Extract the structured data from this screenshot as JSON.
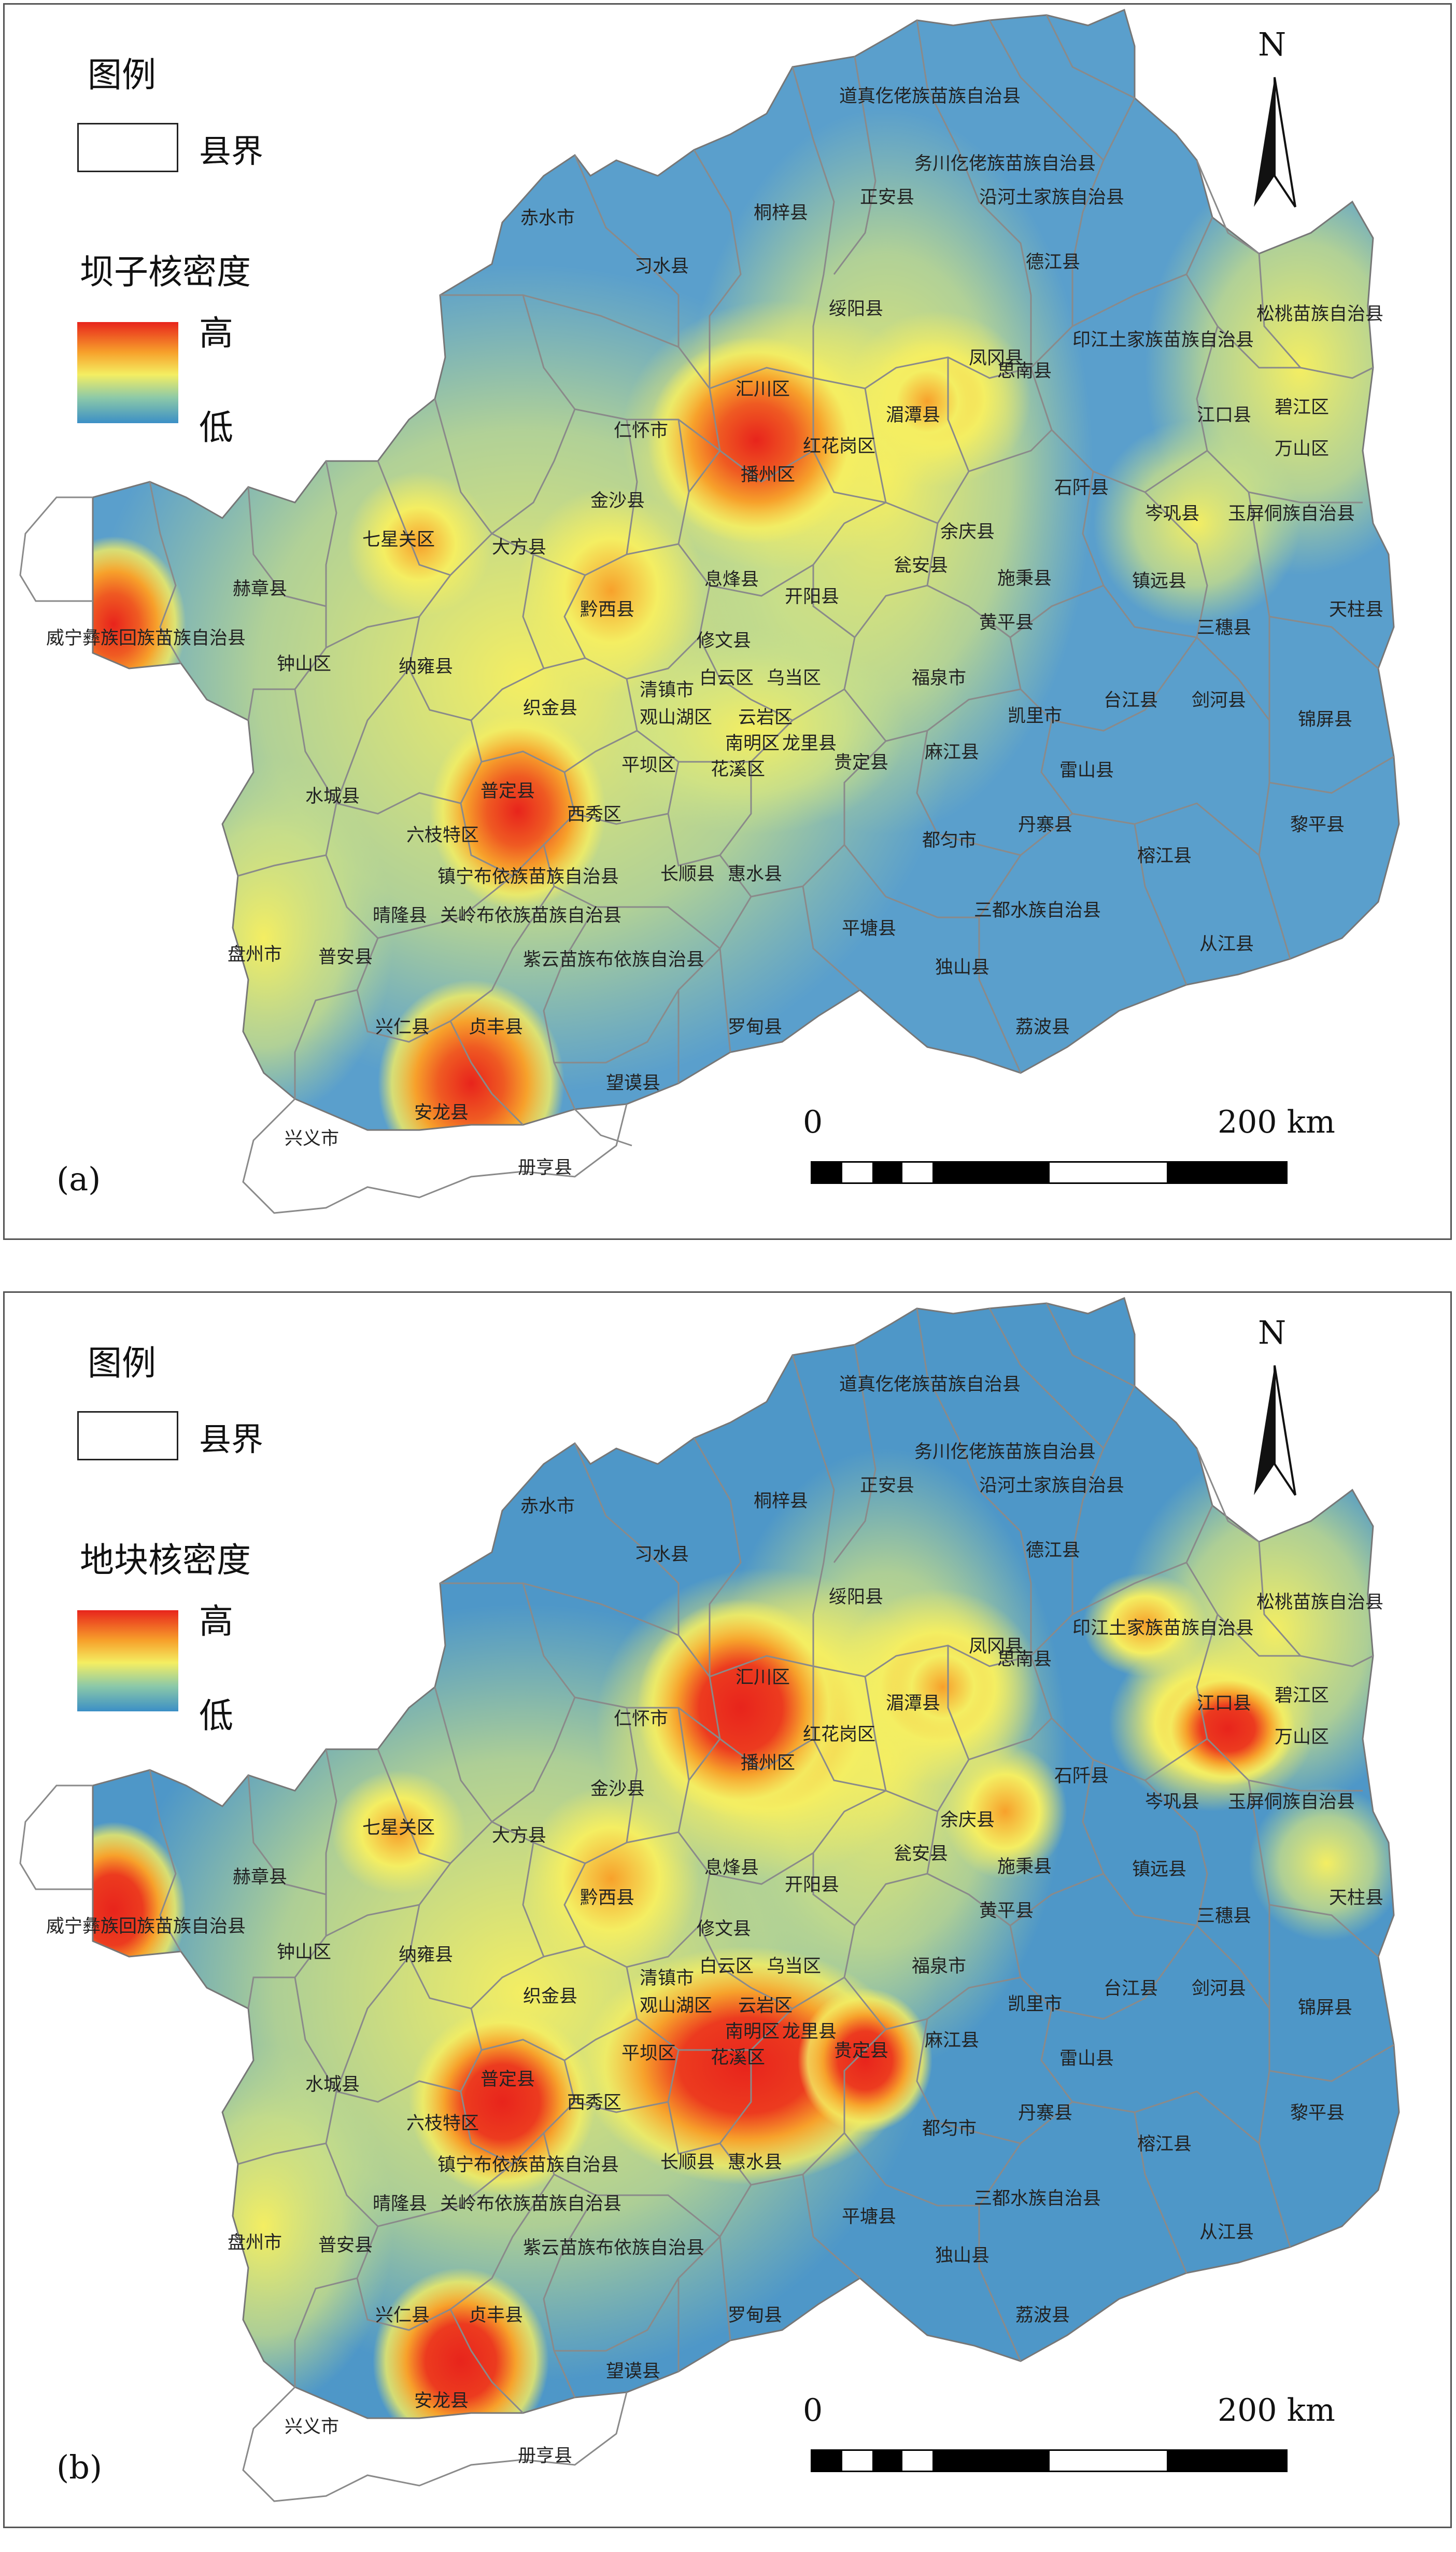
{
  "panels": [
    {
      "id": "a",
      "label": "(a)",
      "legend_title": "图例",
      "county_label": "县界",
      "density_title": "坝子核密度",
      "high_label": "高",
      "low_label": "低",
      "north_label": "N",
      "scale_zero": "0",
      "scale_max": "200 km"
    },
    {
      "id": "b",
      "label": "(b)",
      "legend_title": "图例",
      "county_label": "县界",
      "density_title": "地块核密度",
      "high_label": "高",
      "low_label": "低",
      "north_label": "N",
      "scale_zero": "0",
      "scale_max": "200 km"
    }
  ],
  "colors": {
    "high": "#e8241c",
    "mid_high": "#f7a12b",
    "mid": "#f4ee62",
    "mid_low": "#8cc9a8",
    "low": "#3b8fc6",
    "border": "#8a8a8a"
  },
  "place_names": [
    "道真仡佬族苗族自治县",
    "务川仡佬族苗族自治县",
    "沿河土家族自治县",
    "正安县",
    "桐梓县",
    "赤水市",
    "习水县",
    "德江县",
    "绥阳县",
    "印江土家族苗族自治县",
    "松桃苗族自治县",
    "思南县",
    "凤冈县",
    "汇川区",
    "湄潭县",
    "碧江区",
    "江口县",
    "仁怀市",
    "红花岗区",
    "万山区",
    "播州区",
    "石阡县",
    "岑巩县",
    "玉屏侗族自治县",
    "七星关区",
    "金沙县",
    "余庆县",
    "大方县",
    "瓮安县",
    "镇远县",
    "赫章县",
    "黔西县",
    "息烽县",
    "开阳县",
    "施秉县",
    "天柱县",
    "黄平县",
    "三穗县",
    "威宁彝族回族苗族自治县",
    "钟山区",
    "修文县",
    "纳雍县",
    "白云区",
    "乌当区",
    "福泉市",
    "清镇市",
    "剑河县",
    "台江县",
    "观山湖区",
    "云岩区",
    "织金县",
    "南明区",
    "龙里县",
    "凯里市",
    "锦屏县",
    "麻江县",
    "平坝区",
    "花溪区",
    "贵定县",
    "雷山县",
    "水城县",
    "普定县",
    "西秀区",
    "都匀市",
    "丹寨县",
    "黎平县",
    "六枝特区",
    "镇宁布依族苗族自治县",
    "长顺县",
    "榕江县",
    "惠水县",
    "晴隆县",
    "关岭布依族苗族自治县",
    "三都水族自治县",
    "平塘县",
    "从江县",
    "盘州市",
    "普安县",
    "紫云苗族布依族自治县",
    "独山县",
    "荔波县",
    "兴仁县",
    "贞丰县",
    "罗甸县",
    "望谟县",
    "安龙县",
    "兴义市",
    "册亨县"
  ]
}
